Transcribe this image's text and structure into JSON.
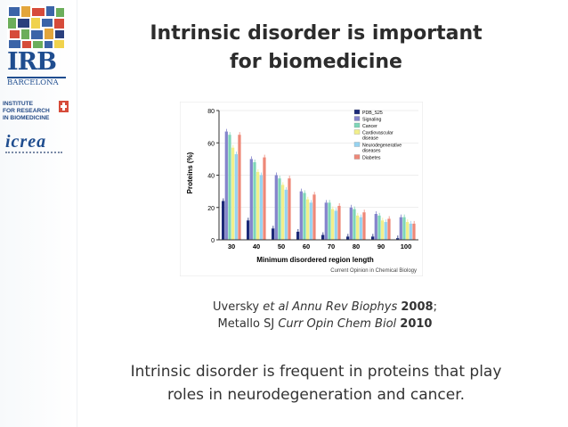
{
  "sidebar": {
    "irb_logo": "IRB",
    "barcelona": "BARCELONA",
    "institute_lines": [
      "INSTITUTE",
      "FOR RESEARCH",
      "IN BIOMEDICINE"
    ],
    "icrea_logo": "icrea"
  },
  "slide": {
    "title_line1": "Intrinsic disorder is important",
    "title_line2": "for biomedicine",
    "citation1": {
      "authors": "Uversky ",
      "etal": "et al Annu Rev Biophys",
      "year": "2008",
      "sep": ";"
    },
    "citation2": {
      "authors": "Metallo SJ ",
      "journal": "Curr Opin Chem Biol",
      "year": "2010"
    },
    "summary_line1": "Intrinsic disorder is frequent in proteins that play",
    "summary_line2": "roles in neurodegeneration and cancer."
  },
  "chart_data": {
    "type": "bar",
    "xlabel": "Minimum disordered region length",
    "ylabel": "Proteins (%)",
    "source": "Current Opinion in Chemical Biology",
    "categories": [
      "30",
      "40",
      "50",
      "60",
      "70",
      "80",
      "90",
      "100"
    ],
    "ylim": [
      0,
      80
    ],
    "yticks": [
      0,
      20,
      40,
      60,
      80
    ],
    "legend_position": "top-right",
    "series": [
      {
        "name": "PDB_S25",
        "color": "#1c2a78",
        "values": [
          24,
          12,
          7,
          5,
          3,
          2,
          2,
          1
        ]
      },
      {
        "name": "Signaling",
        "color": "#8585cc",
        "values": [
          67,
          50,
          40,
          30,
          23,
          20,
          16,
          14
        ]
      },
      {
        "name": "Cancer",
        "color": "#7ed6b8",
        "values": [
          65,
          48,
          38,
          29,
          23,
          19,
          15,
          14
        ]
      },
      {
        "name": "Cardiovascular disease",
        "color": "#f2ef8a",
        "values": [
          57,
          42,
          34,
          25,
          19,
          15,
          12,
          11
        ]
      },
      {
        "name": "Neurodegenerative diseases",
        "color": "#96d3f0",
        "values": [
          53,
          40,
          31,
          23,
          18,
          14,
          11,
          10
        ]
      },
      {
        "name": "Diabetes",
        "color": "#ee8878",
        "values": [
          65,
          51,
          38,
          28,
          21,
          17,
          13,
          10
        ]
      }
    ]
  }
}
